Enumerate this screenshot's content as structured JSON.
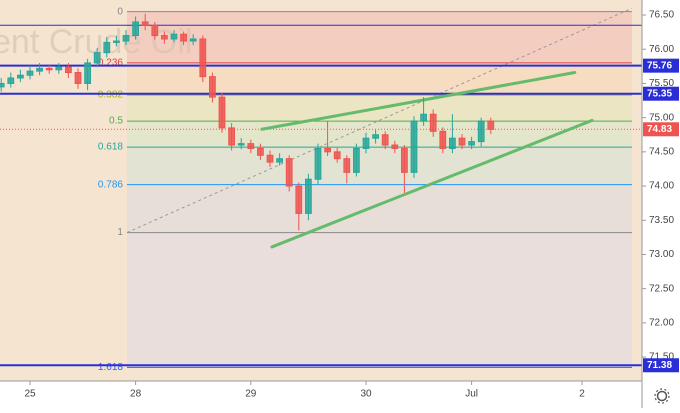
{
  "chart_data": {
    "type": "candlestick",
    "watermark": "ent Crude Oil",
    "x": [
      -6,
      -4,
      -2,
      0,
      2,
      4,
      6,
      8,
      10,
      12,
      14,
      16,
      18,
      20,
      22,
      24,
      26,
      28,
      30,
      32,
      34,
      36,
      38,
      40,
      42,
      44,
      46,
      48,
      50,
      52,
      54,
      56,
      58,
      60,
      62,
      64,
      66,
      68,
      70,
      72,
      74,
      76,
      78,
      80,
      82,
      84,
      86,
      88,
      90,
      92,
      94,
      96
    ],
    "open": [
      75.45,
      75.5,
      75.58,
      75.62,
      75.68,
      75.72,
      75.7,
      75.74,
      75.66,
      75.5,
      75.8,
      75.95,
      76.1,
      76.12,
      76.2,
      76.4,
      76.35,
      76.2,
      76.15,
      76.22,
      76.12,
      76.15,
      75.6,
      75.3,
      74.85,
      74.6,
      74.62,
      74.55,
      74.45,
      74.35,
      74.4,
      74.0,
      73.6,
      74.1,
      74.55,
      74.5,
      74.4,
      74.2,
      74.55,
      74.7,
      74.75,
      74.6,
      74.55,
      74.2,
      74.95,
      75.05,
      74.8,
      74.55,
      74.7,
      74.6,
      74.65,
      74.95
    ],
    "high": [
      75.58,
      75.66,
      75.7,
      75.76,
      75.8,
      75.78,
      75.8,
      75.8,
      75.72,
      75.86,
      76.02,
      76.18,
      76.2,
      76.28,
      76.48,
      76.52,
      76.4,
      76.26,
      76.28,
      76.26,
      76.22,
      76.2,
      75.66,
      75.36,
      74.92,
      74.7,
      74.68,
      74.62,
      74.52,
      74.48,
      74.45,
      74.05,
      74.18,
      74.62,
      74.95,
      74.56,
      74.45,
      74.62,
      74.78,
      74.82,
      74.8,
      74.66,
      74.6,
      75.02,
      75.3,
      75.12,
      74.86,
      75.05,
      74.76,
      74.72,
      75.0,
      75.0
    ],
    "low": [
      75.38,
      75.44,
      75.52,
      75.56,
      75.62,
      75.64,
      75.64,
      75.58,
      75.42,
      75.4,
      75.74,
      75.88,
      76.04,
      76.06,
      76.14,
      76.28,
      76.14,
      76.08,
      76.1,
      76.06,
      76.06,
      75.52,
      75.22,
      74.78,
      74.52,
      74.54,
      74.48,
      74.38,
      74.28,
      74.3,
      73.92,
      73.35,
      73.5,
      74.02,
      74.44,
      74.34,
      74.04,
      74.14,
      74.48,
      74.62,
      74.54,
      74.48,
      73.9,
      74.12,
      74.88,
      74.72,
      74.48,
      74.48,
      74.54,
      74.54,
      74.58,
      74.76
    ],
    "close": [
      75.5,
      75.58,
      75.62,
      75.68,
      75.72,
      75.7,
      75.74,
      75.66,
      75.5,
      75.8,
      75.95,
      76.1,
      76.12,
      76.2,
      76.4,
      76.35,
      76.2,
      76.15,
      76.22,
      76.12,
      76.15,
      75.6,
      75.3,
      74.85,
      74.6,
      74.62,
      74.55,
      74.45,
      74.35,
      74.4,
      74.0,
      73.6,
      74.1,
      74.55,
      74.5,
      74.4,
      74.2,
      74.55,
      74.7,
      74.75,
      74.6,
      74.55,
      74.2,
      74.95,
      75.05,
      74.8,
      74.55,
      74.7,
      74.6,
      74.65,
      74.95,
      74.83
    ],
    "up_color": "#26a69a",
    "down_color": "#ef5350",
    "xlim": [
      -6.25,
      127.5
    ],
    "ylim": [
      71.15,
      76.72
    ],
    "xticks": [
      {
        "value": 0,
        "label": "25"
      },
      {
        "value": 22,
        "label": "28"
      },
      {
        "value": 46,
        "label": "29"
      },
      {
        "value": 70,
        "label": "30"
      },
      {
        "value": 92,
        "label": "Jul"
      },
      {
        "value": 115,
        "label": "2"
      }
    ],
    "yticks": [
      {
        "value": 71.5,
        "label": "71.50"
      },
      {
        "value": 72,
        "label": "72.00"
      },
      {
        "value": 72.5,
        "label": "72.50"
      },
      {
        "value": 73,
        "label": "73.00"
      },
      {
        "value": 73.5,
        "label": "73.50"
      },
      {
        "value": 74,
        "label": "74.00"
      },
      {
        "value": 74.5,
        "label": "74.50"
      },
      {
        "value": 75,
        "label": "75.00"
      },
      {
        "value": 75.5,
        "label": "75.50"
      },
      {
        "value": 76,
        "label": "76.00"
      },
      {
        "value": 76.5,
        "label": "76.50"
      }
    ],
    "fib_x": [
      20.2,
      125.4
    ],
    "fib_levels": [
      {
        "label": "0",
        "value": 76.55,
        "color": "#888888",
        "fill": "#f4c7bd"
      },
      {
        "label": "0.236",
        "value": 75.8,
        "color": "#e04040",
        "fill": "#f6d9bb"
      },
      {
        "label": "0.382",
        "value": 75.33,
        "color": "#a6b800",
        "fill": "#eae5c0"
      },
      {
        "label": "0.5",
        "value": 74.95,
        "color": "#4caf50",
        "fill": "#dfe6c8"
      },
      {
        "label": "0.618",
        "value": 74.57,
        "color": "#26a69a",
        "fill": "#dde2d2"
      },
      {
        "label": "0.786",
        "value": 74.02,
        "color": "#2196f3",
        "fill": "#e3dcda"
      },
      {
        "label": "1",
        "value": 73.32,
        "color": "#888888",
        "fill": "#e6dcde"
      },
      {
        "label": "1.618",
        "value": 71.35,
        "color": "#2962ff",
        "fill": "#e6dcde"
      }
    ],
    "levels": [
      {
        "value": 76.35,
        "color": "#2a2ed6",
        "width": 1
      },
      {
        "label": "75.76",
        "value": 75.76,
        "color": "#2a2ed6",
        "width": 2
      },
      {
        "label": "75.35",
        "value": 75.35,
        "color": "#2a2ed6",
        "width": 2
      },
      {
        "label": "71.38",
        "value": 71.38,
        "color": "#2a2ed6",
        "width": 2
      }
    ],
    "last_price": {
      "label": "74.83",
      "value": 74.83,
      "color": "#ef5350"
    },
    "trend_lines": [
      {
        "x": [
          48.3,
          113.5
        ],
        "y": [
          74.83,
          75.66
        ],
        "color": "#66bb6a"
      },
      {
        "x": [
          50.4,
          117.1
        ],
        "y": [
          73.11,
          74.96
        ],
        "color": "#66bb6a"
      }
    ],
    "diagonal": {
      "x": [
        20.2,
        125.4
      ],
      "y": [
        73.32,
        76.6
      ],
      "color": "#9a9a9a"
    }
  }
}
